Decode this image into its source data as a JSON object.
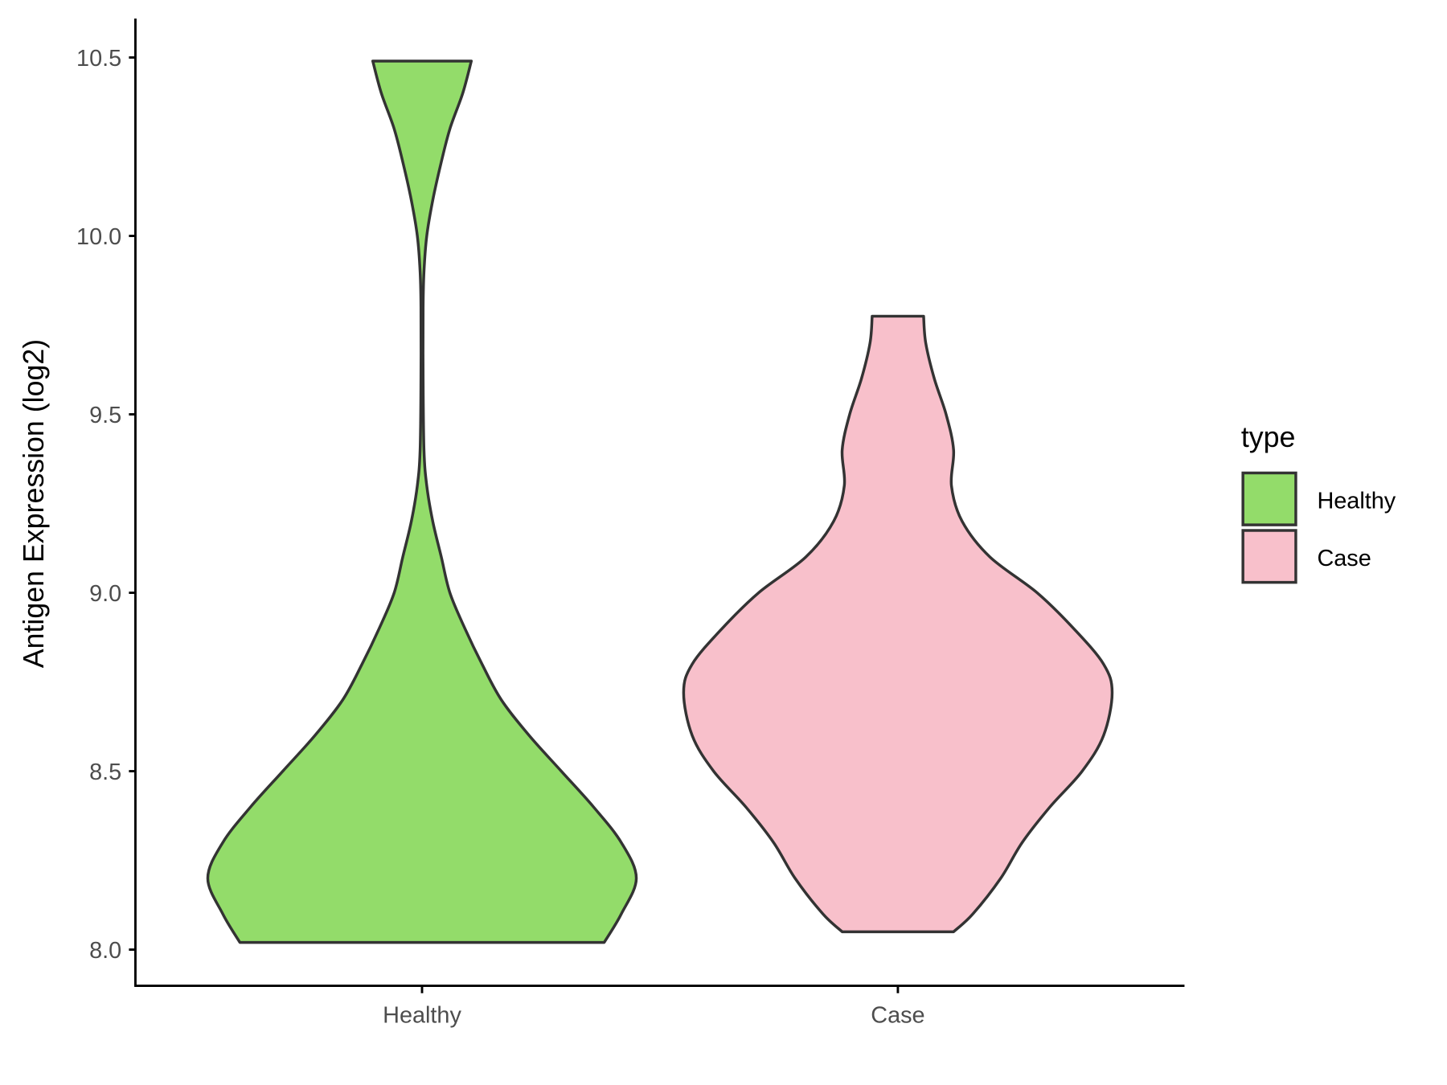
{
  "chart_data": {
    "type": "violin",
    "title": "",
    "xlabel": "",
    "ylabel": "Antigen Expression (log2)",
    "ylim": [
      7.9,
      10.6
    ],
    "yticks": [
      "8.0",
      "8.5",
      "9.0",
      "9.5",
      "10.0",
      "10.5"
    ],
    "categories": [
      "Healthy",
      "Case"
    ],
    "legend": {
      "title": "type",
      "position": "right",
      "entries": [
        "Healthy",
        "Case"
      ]
    },
    "grid": false,
    "series": [
      {
        "name": "Healthy",
        "color": "#93DC6A",
        "min": 8.02,
        "max": 10.49,
        "profile": [
          [
            8.02,
            0.85
          ],
          [
            8.1,
            0.93
          ],
          [
            8.2,
            1.0
          ],
          [
            8.3,
            0.93
          ],
          [
            8.4,
            0.8
          ],
          [
            8.5,
            0.65
          ],
          [
            8.6,
            0.5
          ],
          [
            8.7,
            0.37
          ],
          [
            8.8,
            0.28
          ],
          [
            8.9,
            0.2
          ],
          [
            9.0,
            0.13
          ],
          [
            9.1,
            0.09
          ],
          [
            9.2,
            0.05
          ],
          [
            9.3,
            0.022
          ],
          [
            9.4,
            0.009
          ],
          [
            9.6,
            0.005
          ],
          [
            9.8,
            0.005
          ],
          [
            9.9,
            0.009
          ],
          [
            10.0,
            0.022
          ],
          [
            10.1,
            0.05
          ],
          [
            10.2,
            0.087
          ],
          [
            10.3,
            0.13
          ],
          [
            10.4,
            0.19
          ],
          [
            10.49,
            0.23
          ]
        ]
      },
      {
        "name": "Case",
        "color": "#F8C0CB",
        "min": 8.05,
        "max": 9.775,
        "profile": [
          [
            8.05,
            0.26
          ],
          [
            8.1,
            0.35
          ],
          [
            8.2,
            0.48
          ],
          [
            8.3,
            0.58
          ],
          [
            8.4,
            0.71
          ],
          [
            8.5,
            0.86
          ],
          [
            8.6,
            0.96
          ],
          [
            8.72,
            1.0
          ],
          [
            8.8,
            0.96
          ],
          [
            8.9,
            0.82
          ],
          [
            9.0,
            0.65
          ],
          [
            9.1,
            0.43
          ],
          [
            9.2,
            0.3
          ],
          [
            9.3,
            0.25
          ],
          [
            9.4,
            0.26
          ],
          [
            9.5,
            0.225
          ],
          [
            9.6,
            0.17
          ],
          [
            9.7,
            0.13
          ],
          [
            9.775,
            0.12
          ]
        ]
      }
    ]
  }
}
